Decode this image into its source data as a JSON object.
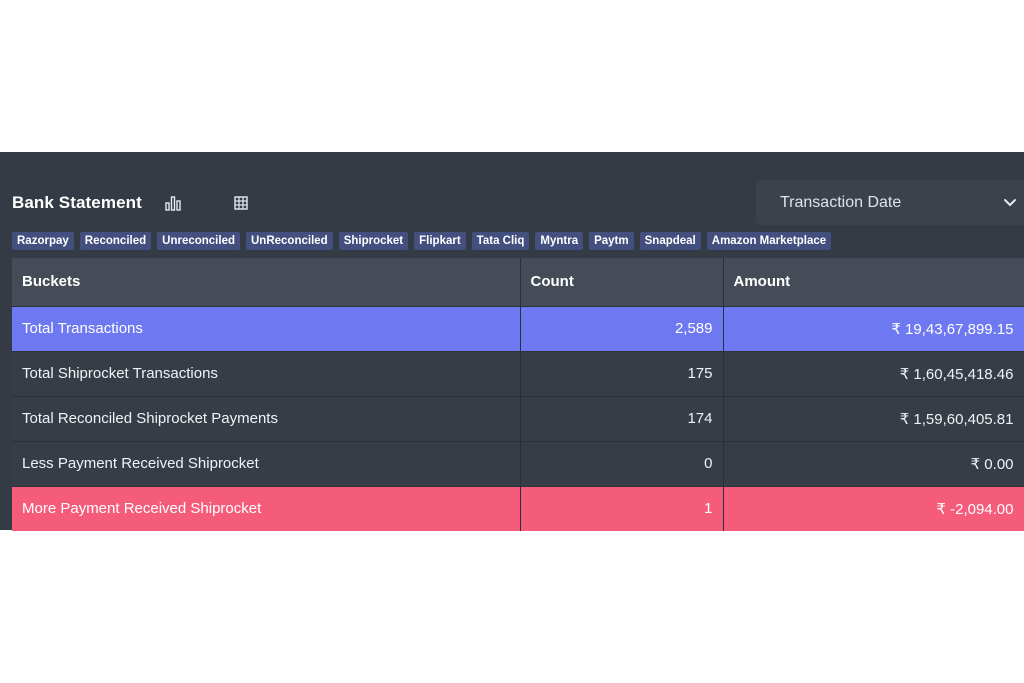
{
  "header": {
    "title": "Bank Statement",
    "chart_icon": "bar-chart-icon",
    "grid_icon": "table-grid-icon"
  },
  "date_select": {
    "value": "Transaction Date",
    "icon": "chevron-down-icon"
  },
  "tags": [
    "Razorpay",
    "Reconciled",
    "Unreconciled",
    "UnReconciled",
    "Shiprocket",
    "Flipkart",
    "Tata Cliq",
    "Myntra",
    "Paytm",
    "Snapdeal",
    "Amazon Marketplace"
  ],
  "table": {
    "columns": [
      "Buckets",
      "Count",
      "Amount"
    ],
    "rows": [
      {
        "bucket": "Total Transactions",
        "count": "2,589",
        "amount": "₹ 19,43,67,899.15"
      },
      {
        "bucket": "Total Shiprocket Transactions",
        "count": "175",
        "amount": "₹ 1,60,45,418.46"
      },
      {
        "bucket": "Total Reconciled Shiprocket Payments",
        "count": "174",
        "amount": "₹ 1,59,60,405.81"
      },
      {
        "bucket": "Less Payment Received Shiprocket",
        "count": "0",
        "amount": "₹ 0.00"
      },
      {
        "bucket": "More Payment Received Shiprocket",
        "count": "1",
        "amount": "₹ -2,094.00"
      }
    ]
  },
  "colors": {
    "panel_bg": "#343b44",
    "header_bg": "#454c57",
    "tag_bg": "#434f7e",
    "row_blue": "#6e78f0",
    "row_red": "#f55c7a"
  }
}
